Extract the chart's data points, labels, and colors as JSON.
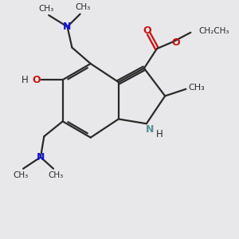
{
  "bg_color": "#e8e8ea",
  "bond_color": "#2a2a2a",
  "n_color": "#1414e0",
  "o_color": "#cc1010",
  "oh_color": "#cc1010",
  "nh_color": "#5a9090",
  "fig_size": [
    3.0,
    3.0
  ],
  "dpi": 100,
  "xlim": [
    0,
    10
  ],
  "ylim": [
    0,
    10
  ]
}
